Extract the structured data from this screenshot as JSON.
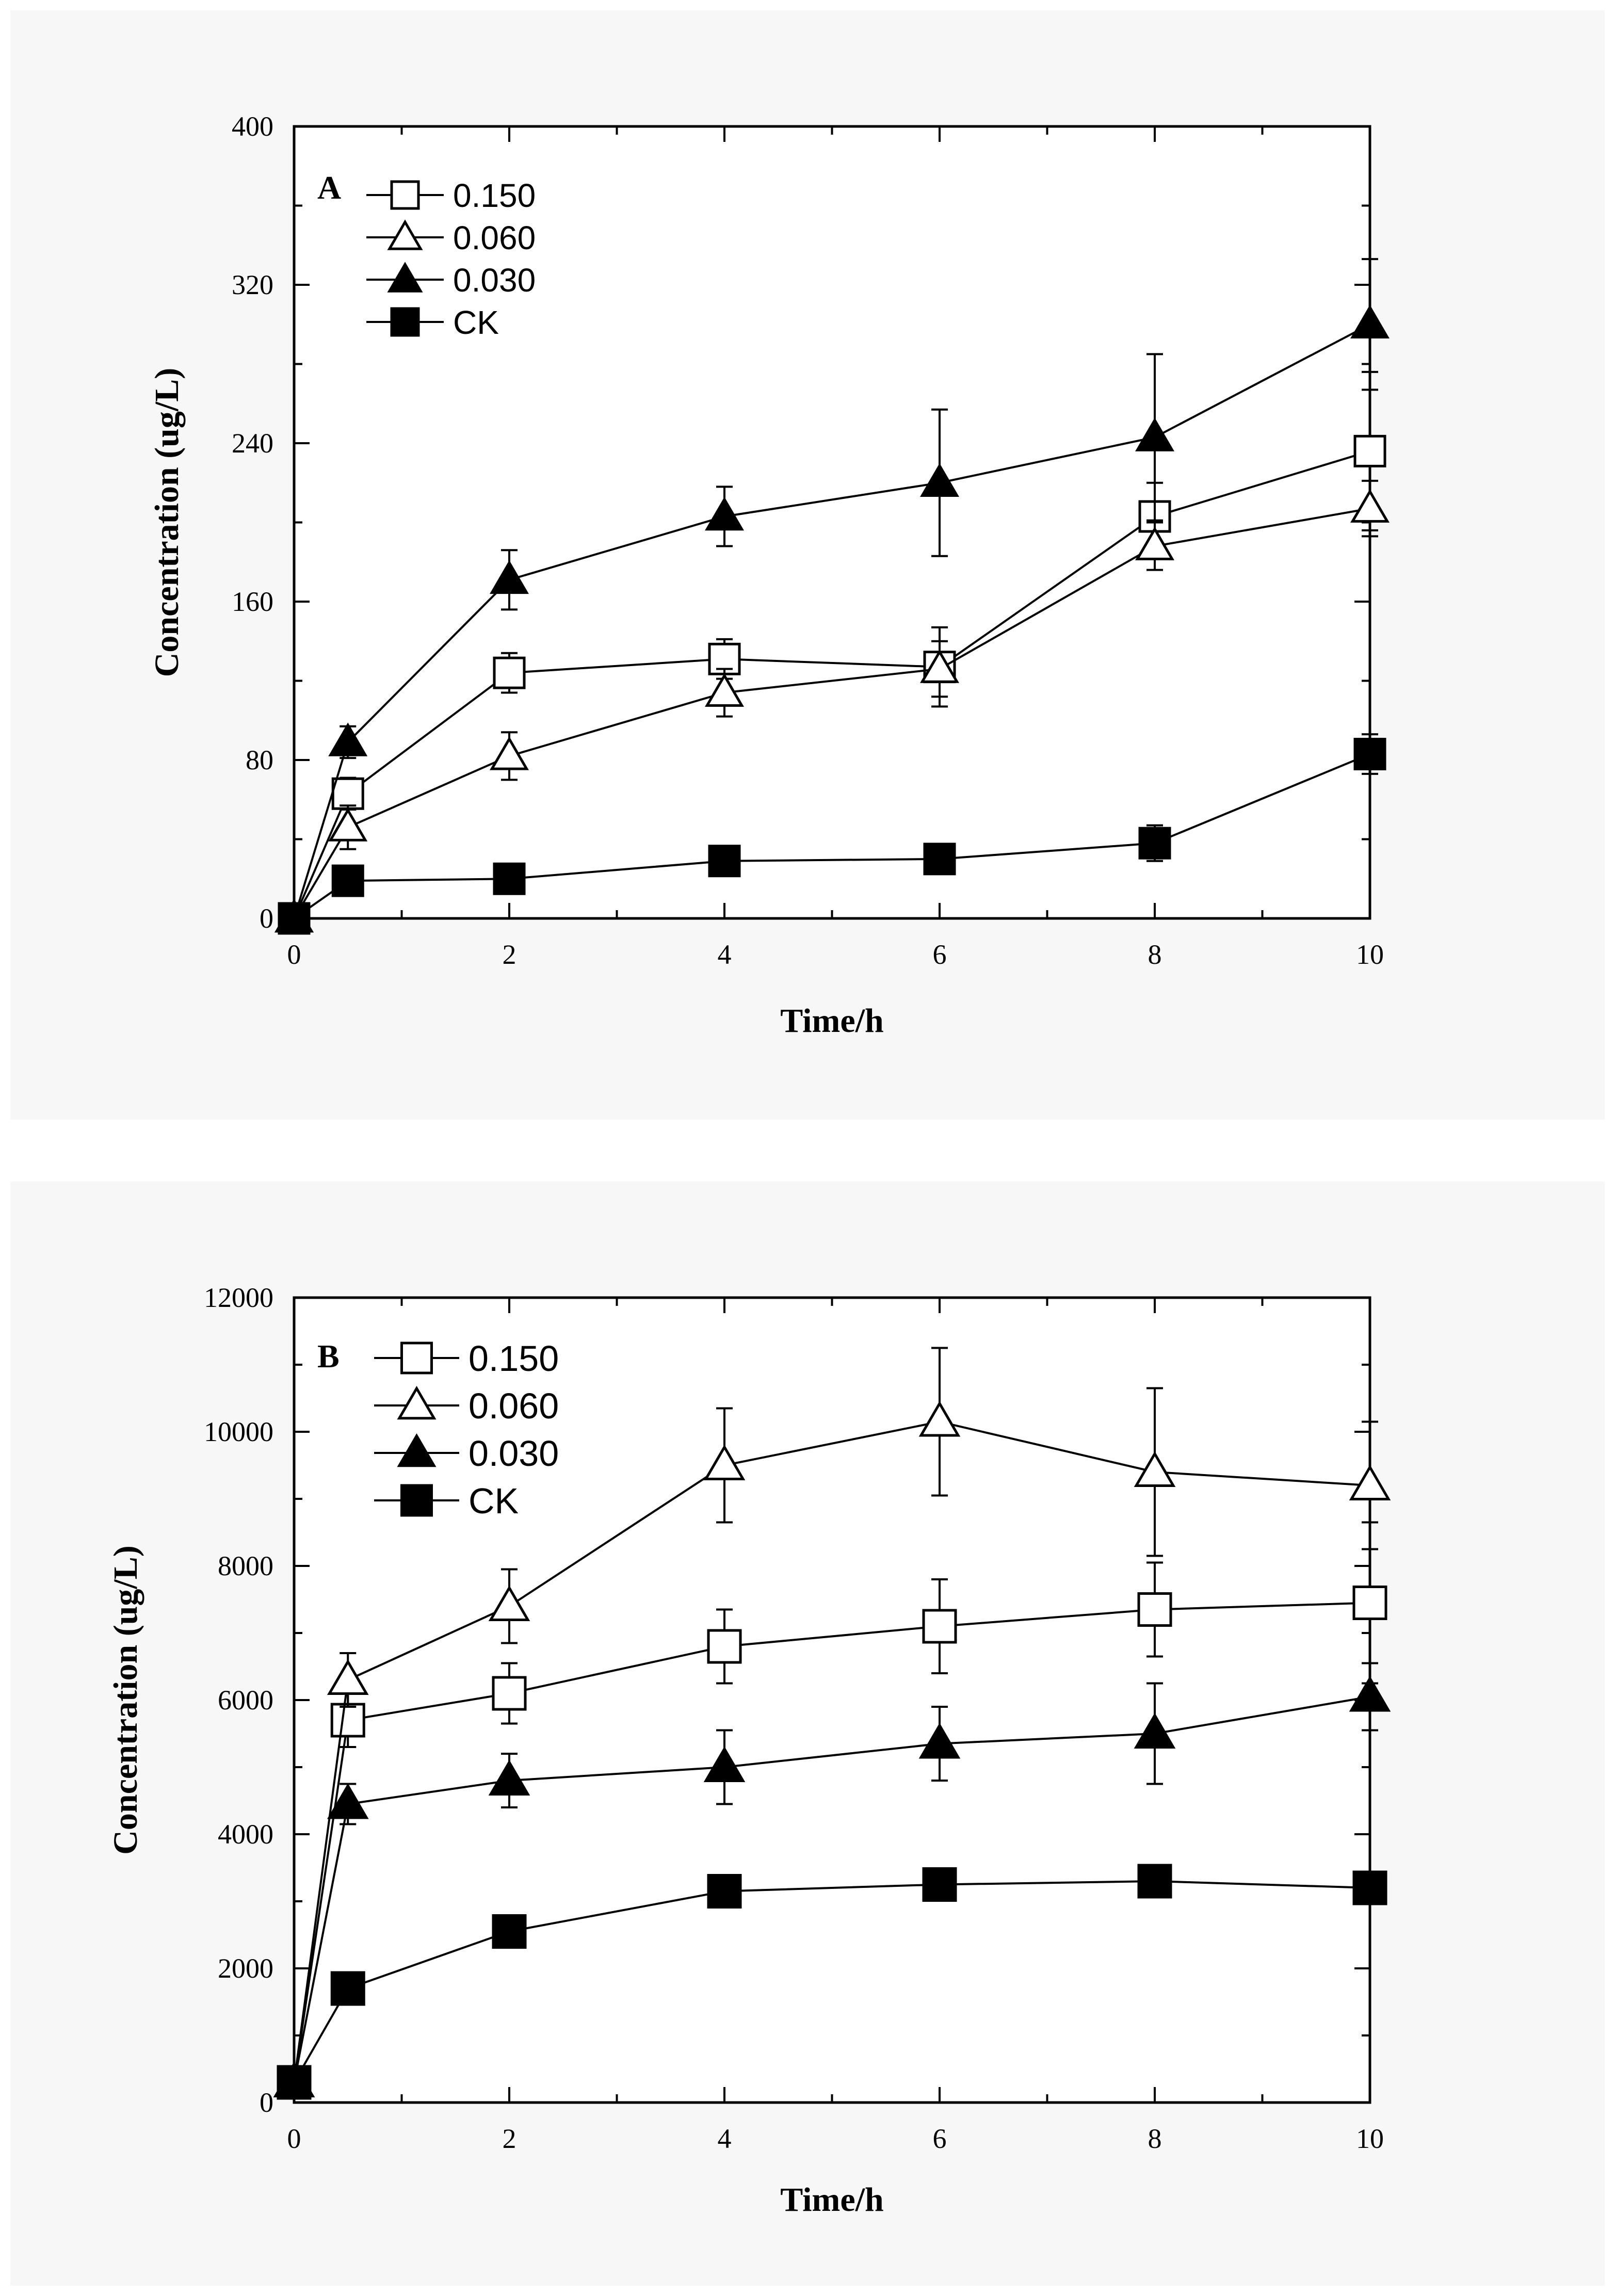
{
  "chart_data": [
    {
      "type": "line",
      "panel": "A",
      "xlabel": "Time/h",
      "ylabel": "Concentration (ug/L)",
      "xlim": [
        0,
        10
      ],
      "ylim": [
        0,
        400
      ],
      "xticks": [
        0,
        2,
        4,
        6,
        8,
        10
      ],
      "xtick_labels": [
        "0",
        "2",
        "4",
        "6",
        "8",
        "10"
      ],
      "yticks": [
        0,
        80,
        160,
        240,
        320,
        400
      ],
      "ytick_labels": [
        "0",
        "80",
        "160",
        "240",
        "320",
        "400"
      ],
      "legend_position": "top-left",
      "x": [
        0,
        0.5,
        2,
        4,
        6,
        8,
        10
      ],
      "series": [
        {
          "name": "0.150",
          "marker": "open-square",
          "values": [
            0,
            63,
            124,
            131,
            127,
            203,
            236
          ],
          "errors": [
            0,
            8,
            10,
            10,
            20,
            17,
            40
          ]
        },
        {
          "name": "0.060",
          "marker": "open-triangle",
          "values": [
            0,
            46,
            82,
            114,
            126,
            188,
            207
          ],
          "errors": [
            0,
            11,
            12,
            12,
            14,
            12,
            14
          ]
        },
        {
          "name": "0.030",
          "marker": "filled-triangle",
          "values": [
            0,
            89,
            171,
            203,
            220,
            243,
            300
          ],
          "errors": [
            0,
            8,
            15,
            15,
            37,
            42,
            33
          ]
        },
        {
          "name": "CK",
          "marker": "filled-square",
          "values": [
            0,
            19,
            20,
            29,
            30,
            38,
            83
          ],
          "errors": [
            0,
            4,
            4,
            4,
            5,
            9,
            10
          ]
        }
      ]
    },
    {
      "type": "line",
      "panel": "B",
      "xlabel": "Time/h",
      "ylabel": "Concentration (ug/L)",
      "xlim": [
        0,
        10
      ],
      "ylim": [
        0,
        12000
      ],
      "xticks": [
        0,
        2,
        4,
        6,
        8,
        10
      ],
      "xtick_labels": [
        "0",
        "2",
        "4",
        "6",
        "8",
        "10"
      ],
      "yticks": [
        0,
        2000,
        4000,
        6000,
        8000,
        10000,
        12000
      ],
      "ytick_labels": [
        "0",
        "2000",
        "4000",
        "6000",
        "8000",
        "10000",
        "12000"
      ],
      "legend_position": "top-left",
      "x": [
        0,
        0.5,
        2,
        4,
        6,
        8,
        10
      ],
      "series": [
        {
          "name": "0.150",
          "marker": "open-square",
          "values": [
            300,
            5700,
            6100,
            6800,
            7100,
            7350,
            7450
          ],
          "errors": [
            0,
            400,
            450,
            550,
            700,
            700,
            1200
          ]
        },
        {
          "name": "0.060",
          "marker": "open-triangle",
          "values": [
            300,
            6300,
            7400,
            9500,
            10150,
            9400,
            9200
          ],
          "errors": [
            0,
            400,
            550,
            850,
            1100,
            1250,
            950
          ]
        },
        {
          "name": "0.030",
          "marker": "filled-triangle",
          "values": [
            300,
            4450,
            4800,
            5000,
            5350,
            5500,
            6050
          ],
          "errors": [
            0,
            300,
            400,
            550,
            550,
            750,
            500
          ]
        },
        {
          "name": "CK",
          "marker": "filled-square",
          "values": [
            300,
            1700,
            2550,
            3150,
            3250,
            3300,
            3200
          ],
          "errors": [
            0,
            150,
            150,
            200,
            200,
            200,
            200
          ]
        }
      ]
    }
  ]
}
